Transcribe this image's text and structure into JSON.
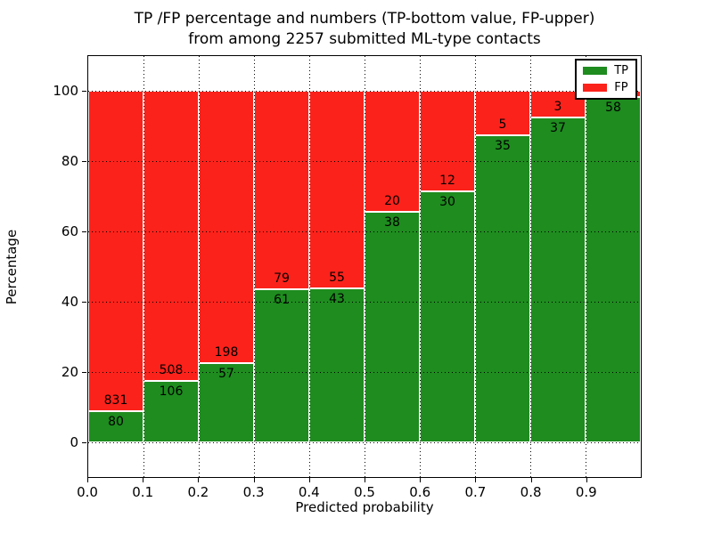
{
  "title": {
    "line1": "TP /FP percentage and numbers (TP-bottom value, FP-upper)",
    "line2": "from among 2257 submitted ML-type contacts"
  },
  "axes": {
    "xlabel": "Predicted probability",
    "ylabel": "Percentage",
    "x_tick_labels": [
      "0.0",
      "0.1",
      "0.2",
      "0.3",
      "0.4",
      "0.5",
      "0.6",
      "0.7",
      "0.8",
      "0.9"
    ],
    "y_tick_labels": [
      "0",
      "20",
      "40",
      "60",
      "80",
      "100"
    ],
    "y_tick_values": [
      0,
      20,
      40,
      60,
      80,
      100
    ]
  },
  "legend": [
    {
      "label": "TP",
      "color": "#1e8c1f"
    },
    {
      "label": "FP",
      "color": "#fb221b"
    }
  ],
  "colors": {
    "tp_green": "#1e8c1f",
    "fp_red": "#fb221b",
    "grid": "#000000",
    "frame": "#000000"
  },
  "chart_data": {
    "type": "bar",
    "stacked": true,
    "title": "TP /FP percentage and numbers (TP-bottom value, FP-upper) from among 2257 submitted ML-type contacts",
    "total_contacts": 2257,
    "xlabel": "Predicted probability",
    "ylabel": "Percentage",
    "xlim": [
      0.0,
      1.0
    ],
    "ylim": [
      -10,
      110
    ],
    "bin_width": 0.1,
    "grid": "dotted",
    "legend_position": "upper right",
    "series": [
      {
        "name": "TP",
        "color": "#1e8c1f",
        "position": "bottom"
      },
      {
        "name": "FP",
        "color": "#fb221b",
        "position": "top"
      }
    ],
    "bins": [
      {
        "range": [
          0.0,
          0.1
        ],
        "tp_count": 80,
        "fp_count": 831,
        "tp_pct": 8.8,
        "fp_pct": 91.2,
        "tp_label": "80",
        "fp_label": "831"
      },
      {
        "range": [
          0.1,
          0.2
        ],
        "tp_count": 106,
        "fp_count": 508,
        "tp_pct": 17.3,
        "fp_pct": 82.7,
        "tp_label": "106",
        "fp_label": "508"
      },
      {
        "range": [
          0.2,
          0.3
        ],
        "tp_count": 57,
        "fp_count": 198,
        "tp_pct": 22.4,
        "fp_pct": 77.6,
        "tp_label": "57",
        "fp_label": "198"
      },
      {
        "range": [
          0.3,
          0.4
        ],
        "tp_count": 61,
        "fp_count": 79,
        "tp_pct": 43.6,
        "fp_pct": 56.4,
        "tp_label": "61",
        "fp_label": "79"
      },
      {
        "range": [
          0.4,
          0.5
        ],
        "tp_count": 43,
        "fp_count": 55,
        "tp_pct": 43.9,
        "fp_pct": 56.1,
        "tp_label": "43",
        "fp_label": "55"
      },
      {
        "range": [
          0.5,
          0.6
        ],
        "tp_count": 38,
        "fp_count": 20,
        "tp_pct": 65.5,
        "fp_pct": 34.5,
        "tp_label": "38",
        "fp_label": "20"
      },
      {
        "range": [
          0.6,
          0.7
        ],
        "tp_count": 30,
        "fp_count": 12,
        "tp_pct": 71.4,
        "fp_pct": 28.6,
        "tp_label": "30",
        "fp_label": "12"
      },
      {
        "range": [
          0.7,
          0.8
        ],
        "tp_count": 35,
        "fp_count": 5,
        "tp_pct": 87.5,
        "fp_pct": 12.5,
        "tp_label": "35",
        "fp_label": "5"
      },
      {
        "range": [
          0.8,
          0.9
        ],
        "tp_count": 37,
        "fp_count": 3,
        "tp_pct": 92.5,
        "fp_pct": 7.5,
        "tp_label": "37",
        "fp_label": "3"
      },
      {
        "range": [
          0.9,
          1.0
        ],
        "tp_count": 58,
        "fp_count": null,
        "tp_pct": 98.3,
        "fp_pct": 1.7,
        "tp_label": "58",
        "fp_label": ""
      }
    ]
  }
}
